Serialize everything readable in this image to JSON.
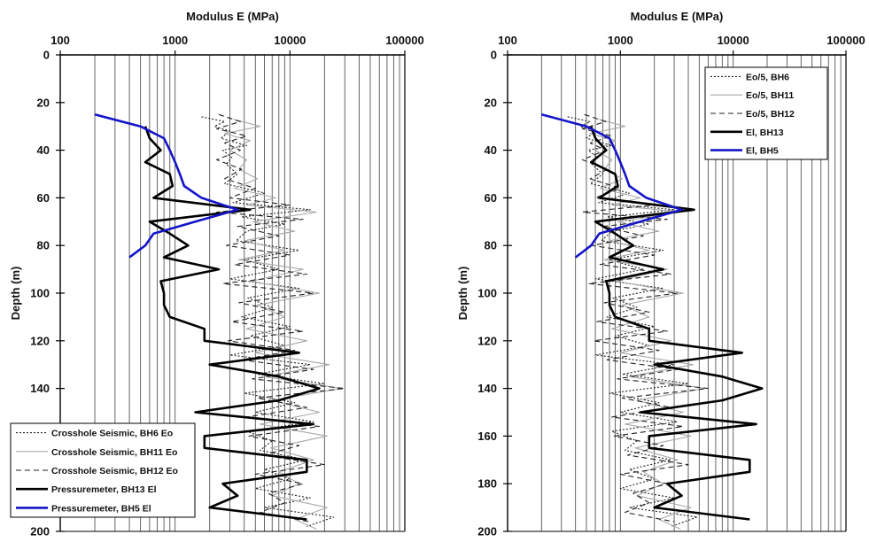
{
  "chart_data": [
    {
      "type": "line",
      "title": "",
      "xlabel": "Modulus E (MPa)",
      "ylabel": "Depth (m)",
      "x_scale": "log",
      "xlim": [
        100,
        100000
      ],
      "ylim": [
        0,
        200
      ],
      "y_inverted": true,
      "x_axis_position": "top",
      "x_ticks": [
        "100",
        "1000",
        "10000",
        "100000"
      ],
      "y_ticks": [
        "0",
        "20",
        "40",
        "60",
        "80",
        "100",
        "120",
        "140",
        "160",
        "180",
        "200"
      ],
      "grid": "vertical log grid",
      "legend_position": "bottom-left",
      "series": [
        {
          "name": "Crosshole Seismic, BH6 Eo",
          "style": "dotted",
          "color": "#222222",
          "depth": [
            26,
            28,
            30,
            32,
            35,
            38,
            40,
            43,
            46,
            50,
            54,
            58,
            62,
            65,
            68,
            71,
            74,
            78,
            82,
            86,
            90,
            94,
            98,
            102,
            106,
            110,
            114,
            118,
            122,
            126,
            130,
            134,
            138,
            142,
            146,
            150,
            154,
            158,
            162,
            166,
            170,
            174,
            178,
            182,
            186,
            190,
            194,
            198
          ],
          "modulus": [
            1700,
            2700,
            2200,
            3000,
            2500,
            4200,
            2600,
            3100,
            2800,
            3500,
            2700,
            6000,
            3200,
            15000,
            3800,
            9000,
            4200,
            3400,
            12000,
            4000,
            8000,
            3000,
            12000,
            4300,
            7000,
            3800,
            10000,
            4500,
            9000,
            3000,
            15000,
            5200,
            20000,
            4000,
            11000,
            5000,
            16000,
            4200,
            7000,
            5500,
            14000,
            6000,
            10000,
            5000,
            15000,
            6000,
            24000,
            14000
          ]
        },
        {
          "name": "Crosshole Seismic, BH11 Eo",
          "style": "solid",
          "color": "#a8a8a8",
          "depth": [
            27,
            30,
            33,
            36,
            40,
            44,
            48,
            52,
            56,
            60,
            63,
            66,
            70,
            74,
            78,
            82,
            86,
            90,
            95,
            100,
            105,
            110,
            115,
            120,
            125,
            130,
            135,
            140,
            145,
            150,
            155,
            160,
            165,
            170,
            175,
            180,
            185,
            190,
            195,
            199
          ],
          "modulus": [
            3200,
            5500,
            2700,
            4500,
            3000,
            4200,
            3600,
            5200,
            3300,
            7500,
            4200,
            17000,
            4800,
            11000,
            4000,
            9000,
            3600,
            13000,
            4600,
            18000,
            5200,
            9000,
            4200,
            14000,
            5000,
            22000,
            6000,
            28000,
            7000,
            18000,
            5500,
            21000,
            6800,
            16000,
            8000,
            12000,
            7000,
            21000,
            11000,
            17000
          ]
        },
        {
          "name": "Crosshole Seismic, BH12 Eo",
          "style": "dashed",
          "color": "#222222",
          "depth": [
            25,
            28,
            31,
            34,
            37,
            40,
            44,
            48,
            52,
            56,
            60,
            63,
            66,
            69,
            72,
            76,
            80,
            84,
            88,
            92,
            96,
            100,
            104,
            108,
            112,
            116,
            120,
            124,
            128,
            132,
            136,
            140,
            144,
            148,
            152,
            156,
            160,
            164,
            168,
            172,
            176,
            180,
            184,
            188,
            192,
            196
          ],
          "modulus": [
            2400,
            3700,
            2300,
            4200,
            2700,
            3700,
            2300,
            3800,
            2700,
            5000,
            3000,
            10000,
            2300,
            13000,
            3500,
            8000,
            2800,
            10000,
            3300,
            14000,
            2600,
            16000,
            3600,
            9000,
            3100,
            13000,
            2900,
            11000,
            3800,
            16000,
            4700,
            30000,
            5200,
            14000,
            4200,
            18000,
            4400,
            12000,
            5800,
            20000,
            5000,
            13000,
            6500,
            9000,
            5500,
            15000
          ]
        },
        {
          "name": "Pressuremeter, BH13 El",
          "style": "solid-thick",
          "color": "#000000",
          "depth": [
            30,
            35,
            40,
            45,
            50,
            55,
            60,
            65,
            70,
            75,
            80,
            85,
            90,
            95,
            100,
            105,
            110,
            115,
            120,
            125,
            130,
            135,
            140,
            145,
            150,
            155,
            160,
            165,
            170,
            175,
            180,
            185,
            190,
            195
          ],
          "modulus": [
            550,
            600,
            750,
            550,
            900,
            950,
            650,
            4500,
            600,
            900,
            1300,
            800,
            2400,
            750,
            800,
            800,
            900,
            1800,
            1800,
            12000,
            2000,
            8000,
            18000,
            8000,
            1500,
            16000,
            1800,
            1800,
            14000,
            14000,
            2600,
            3500,
            2000,
            14000
          ]
        },
        {
          "name": "Pressuremeter, BH5 El",
          "style": "solid-thick",
          "color": "#1515c8",
          "depth": [
            25,
            30,
            35,
            40,
            45,
            50,
            55,
            60,
            65,
            70,
            75,
            80,
            85
          ],
          "modulus": [
            200,
            500,
            800,
            900,
            1000,
            1100,
            1200,
            1700,
            3500,
            1500,
            650,
            550,
            400
          ]
        }
      ]
    },
    {
      "type": "line",
      "title": "",
      "xlabel": "Modulus E (MPa)",
      "ylabel": "Depth (m)",
      "x_scale": "log",
      "xlim": [
        100,
        100000
      ],
      "ylim": [
        0,
        200
      ],
      "y_inverted": true,
      "x_axis_position": "top",
      "x_ticks": [
        "100",
        "1000",
        "10000",
        "100000"
      ],
      "y_ticks": [
        "0",
        "20",
        "40",
        "60",
        "80",
        "100",
        "120",
        "140",
        "160",
        "180",
        "200"
      ],
      "grid": "vertical log grid",
      "legend_position": "top-right",
      "series": [
        {
          "name": "Eo/5, BH6",
          "style": "dotted",
          "color": "#222222",
          "depth": [
            26,
            28,
            30,
            32,
            35,
            38,
            40,
            43,
            46,
            50,
            54,
            58,
            62,
            65,
            68,
            71,
            74,
            78,
            82,
            86,
            90,
            94,
            98,
            102,
            106,
            110,
            114,
            118,
            122,
            126,
            130,
            134,
            138,
            142,
            146,
            150,
            154,
            158,
            162,
            166,
            170,
            174,
            178,
            182,
            186,
            190,
            194,
            198
          ],
          "modulus": [
            340,
            540,
            440,
            600,
            500,
            840,
            520,
            620,
            560,
            700,
            540,
            1200,
            640,
            3000,
            760,
            1800,
            840,
            680,
            2400,
            800,
            1600,
            600,
            2400,
            860,
            1400,
            760,
            2000,
            900,
            1800,
            600,
            3000,
            1040,
            4000,
            800,
            2200,
            1000,
            3200,
            840,
            1400,
            1100,
            2800,
            1200,
            2000,
            1000,
            3000,
            1200,
            4800,
            2800
          ]
        },
        {
          "name": "Eo/5, BH11",
          "style": "solid",
          "color": "#a8a8a8",
          "depth": [
            27,
            30,
            33,
            36,
            40,
            44,
            48,
            52,
            56,
            60,
            63,
            66,
            70,
            74,
            78,
            82,
            86,
            90,
            95,
            100,
            105,
            110,
            115,
            120,
            125,
            130,
            135,
            140,
            145,
            150,
            155,
            160,
            165,
            170,
            175,
            180,
            185,
            190,
            195,
            199
          ],
          "modulus": [
            640,
            1100,
            540,
            900,
            600,
            840,
            720,
            1040,
            660,
            1500,
            840,
            3400,
            960,
            2200,
            800,
            1800,
            720,
            2600,
            920,
            3600,
            1040,
            1800,
            840,
            2800,
            1000,
            4400,
            1200,
            5600,
            1400,
            3600,
            1100,
            4200,
            1360,
            3200,
            1600,
            2400,
            1400,
            4200,
            2200,
            3400
          ]
        },
        {
          "name": "Eo/5, BH12",
          "style": "dashed",
          "color": "#222222",
          "depth": [
            25,
            28,
            31,
            34,
            37,
            40,
            44,
            48,
            52,
            56,
            60,
            63,
            66,
            69,
            72,
            76,
            80,
            84,
            88,
            92,
            96,
            100,
            104,
            108,
            112,
            116,
            120,
            124,
            128,
            132,
            136,
            140,
            144,
            148,
            152,
            156,
            160,
            164,
            168,
            172,
            176,
            180,
            184,
            188,
            192,
            196
          ],
          "modulus": [
            480,
            740,
            460,
            840,
            540,
            740,
            460,
            760,
            540,
            1000,
            600,
            2000,
            460,
            2600,
            700,
            1600,
            560,
            2000,
            660,
            2800,
            520,
            3200,
            720,
            1800,
            620,
            2600,
            580,
            2200,
            760,
            3200,
            940,
            6000,
            1040,
            2800,
            840,
            3600,
            880,
            2400,
            1160,
            4000,
            1000,
            2600,
            1300,
            1800,
            1100,
            3000
          ]
        },
        {
          "name": "El, BH13",
          "style": "solid-thick",
          "color": "#000000",
          "depth": [
            30,
            35,
            40,
            45,
            50,
            55,
            60,
            65,
            70,
            75,
            80,
            85,
            90,
            95,
            100,
            105,
            110,
            115,
            120,
            125,
            130,
            135,
            140,
            145,
            150,
            155,
            160,
            165,
            170,
            175,
            180,
            185,
            190,
            195
          ],
          "modulus": [
            550,
            600,
            750,
            550,
            900,
            950,
            650,
            4500,
            600,
            900,
            1300,
            800,
            2400,
            750,
            800,
            800,
            900,
            1800,
            1800,
            12000,
            2000,
            8000,
            18000,
            8000,
            1500,
            16000,
            1800,
            1800,
            14000,
            14000,
            2600,
            3500,
            2000,
            14000
          ]
        },
        {
          "name": "El, BH5",
          "style": "solid-thick",
          "color": "#1515c8",
          "depth": [
            25,
            30,
            35,
            40,
            45,
            50,
            55,
            60,
            65,
            70,
            75,
            80,
            85
          ],
          "modulus": [
            200,
            500,
            800,
            900,
            1000,
            1100,
            1200,
            1700,
            3500,
            1500,
            650,
            550,
            400
          ]
        }
      ]
    }
  ]
}
